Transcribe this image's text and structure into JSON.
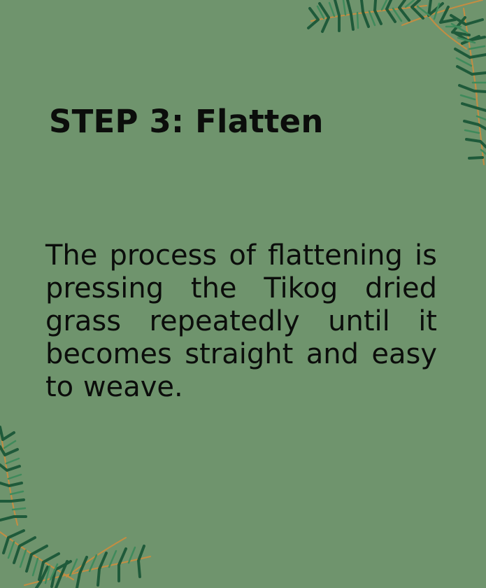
{
  "card": {
    "heading": "STEP 3: Flatten",
    "body": "The process of flattening is pressing the Tikog dried grass repeatedly until it becomes straight and easy to weave."
  },
  "colors": {
    "background": "#6f946d",
    "text": "#0b0d0b",
    "leaf_dark": "#1f5a3a",
    "leaf_light": "#3f8a5b",
    "twig": "#c48d42"
  },
  "decorations": {
    "top_right": "pine-branch-icon",
    "bottom_left": "pine-branch-icon"
  }
}
